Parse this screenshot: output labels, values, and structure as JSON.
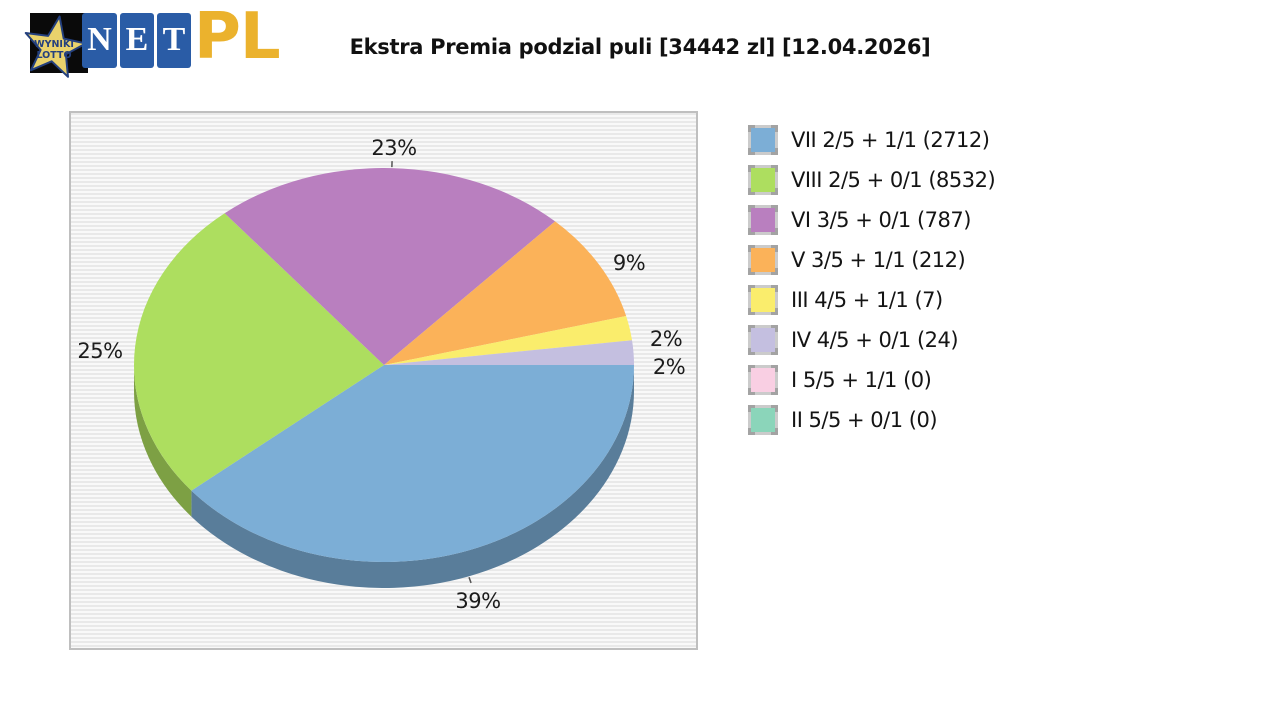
{
  "logo": {
    "star_text_line1": "WYNIKI",
    "star_text_line2": "LOTTO",
    "letters": [
      "N",
      "E",
      "T"
    ],
    "suffix": "PL",
    "colors": {
      "star_fill": "#e9d26c",
      "star_outline": "#24407e",
      "box_blue": "#2a5ca6",
      "gold": "#ebb22d"
    }
  },
  "title": "Ekstra Premia podzial puli [34442 zl] [12.04.2026]",
  "chart_data": {
    "type": "pie",
    "title": "Ekstra Premia podzial puli [34442 zl] [12.04.2026]",
    "effect_3d": true,
    "legend_position": "right",
    "slices": [
      {
        "name": "VII 2/5 + 1/1",
        "count": 2712,
        "percent": 39,
        "color": "#7caed6",
        "label": "VII 2/5 + 1/1 (2712)"
      },
      {
        "name": "VIII 2/5 + 0/1",
        "count": 8532,
        "percent": 25,
        "color": "#addE5f",
        "label": "VIII 2/5 + 0/1 (8532)"
      },
      {
        "name": "VI 3/5 + 0/1",
        "count": 787,
        "percent": 23,
        "color": "#b97fbf",
        "label": "VI 3/5 + 0/1 (787)"
      },
      {
        "name": "V 3/5 + 1/1",
        "count": 212,
        "percent": 9,
        "color": "#fbb259",
        "label": "V 3/5 + 1/1 (212)"
      },
      {
        "name": "III 4/5 + 1/1",
        "count": 7,
        "percent": 2,
        "color": "#faed6c",
        "label": "III 4/5 + 1/1 (7)"
      },
      {
        "name": "IV 4/5 + 0/1",
        "count": 24,
        "percent": 2,
        "color": "#c4bfe0",
        "label": "IV 4/5 + 0/1 (24)"
      },
      {
        "name": "I 5/5 + 1/1",
        "count": 0,
        "percent": 0,
        "color": "#f9cfe3",
        "label": "I 5/5 + 1/1 (0)"
      },
      {
        "name": "II 5/5 + 0/1",
        "count": 0,
        "percent": 0,
        "color": "#8bd5ba",
        "label": "II 5/5 + 0/1 (0)"
      }
    ]
  }
}
